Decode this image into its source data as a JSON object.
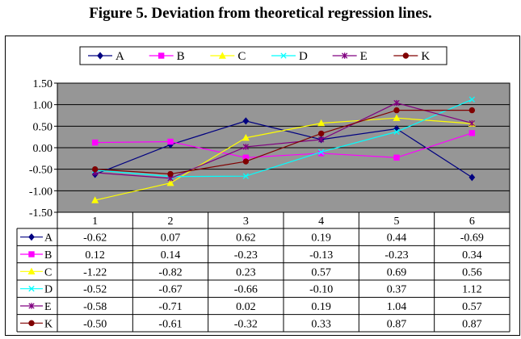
{
  "figure": {
    "title": "Figure 5. Deviation from theoretical regression lines."
  },
  "chart_data": {
    "type": "line",
    "title": "Figure 5. Deviation from theoretical regression lines.",
    "xlabel": "",
    "ylabel": "",
    "categories": [
      "1",
      "2",
      "3",
      "4",
      "5",
      "6"
    ],
    "ylim": [
      -1.5,
      1.5
    ],
    "yticks": [
      "1.50",
      "1.00",
      "0.50",
      "0.00",
      "-0.50",
      "-1.00",
      "-1.50"
    ],
    "grid": true,
    "plot_background": "#969696",
    "legend_position": "top",
    "data_table": true,
    "series": [
      {
        "name": "A",
        "color": "#000080",
        "marker": "diamond",
        "values": [
          -0.62,
          0.07,
          0.62,
          0.19,
          0.44,
          -0.69
        ],
        "labels": [
          "-0.62",
          "0.07",
          "0.62",
          "0.19",
          "0.44",
          "-0.69"
        ]
      },
      {
        "name": "B",
        "color": "#ff00ff",
        "marker": "square",
        "values": [
          0.12,
          0.14,
          -0.23,
          -0.13,
          -0.23,
          0.34
        ],
        "labels": [
          "0.12",
          "0.14",
          "-0.23",
          "-0.13",
          "-0.23",
          "0.34"
        ]
      },
      {
        "name": "C",
        "color": "#ffff00",
        "marker": "triangle",
        "values": [
          -1.22,
          -0.82,
          0.23,
          0.57,
          0.69,
          0.56
        ],
        "labels": [
          "-1.22",
          "-0.82",
          "0.23",
          "0.57",
          "0.69",
          "0.56"
        ]
      },
      {
        "name": "D",
        "color": "#00ffff",
        "marker": "x",
        "values": [
          -0.52,
          -0.67,
          -0.66,
          -0.1,
          0.37,
          1.12
        ],
        "labels": [
          "-0.52",
          "-0.67",
          "-0.66",
          "-0.10",
          "0.37",
          "1.12"
        ]
      },
      {
        "name": "E",
        "color": "#800080",
        "marker": "star",
        "values": [
          -0.58,
          -0.71,
          0.02,
          0.19,
          1.04,
          0.57
        ],
        "labels": [
          "-0.58",
          "-0.71",
          "0.02",
          "0.19",
          "1.04",
          "0.57"
        ]
      },
      {
        "name": "K",
        "color": "#800000",
        "marker": "circle",
        "values": [
          -0.5,
          -0.61,
          -0.32,
          0.33,
          0.87,
          0.87
        ],
        "labels": [
          "-0.50",
          "-0.61",
          "-0.32",
          "0.33",
          "0.87",
          "0.87"
        ]
      }
    ]
  }
}
